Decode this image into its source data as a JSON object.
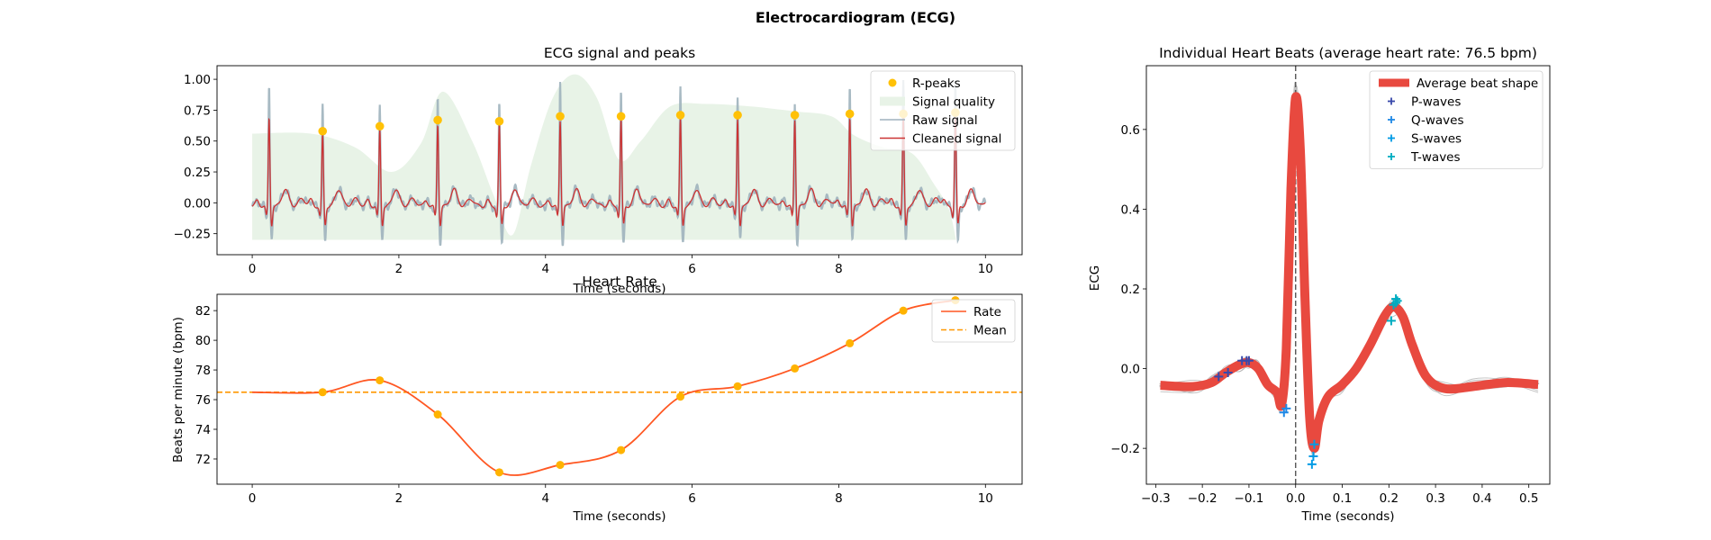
{
  "figure": {
    "title": "Electrocardiogram (ECG)"
  },
  "chart_data": [
    {
      "id": "ecg",
      "type": "line",
      "title": "ECG signal and peaks",
      "xlabel": "Time (seconds)",
      "ylabel": "",
      "xlim": [
        -0.48,
        10.5
      ],
      "ylim": [
        -0.42,
        1.11
      ],
      "xticks": [
        0,
        2,
        4,
        6,
        8,
        10
      ],
      "yticks": [
        -0.25,
        0.0,
        0.25,
        0.5,
        0.75,
        1.0
      ],
      "ytick_labels": [
        "−0.25",
        "0.00",
        "0.25",
        "0.50",
        "0.75",
        "1.00"
      ],
      "legend": {
        "placement": "top-right",
        "entries": [
          {
            "label": "R-peaks",
            "kind": "dot",
            "color": "#ffc107"
          },
          {
            "label": "Signal quality",
            "kind": "patch",
            "color": "#e8f3e7"
          },
          {
            "label": "Raw signal",
            "kind": "line",
            "color": "#9fb2bd"
          },
          {
            "label": "Cleaned signal",
            "kind": "line",
            "color": "#cc3333"
          }
        ]
      },
      "colors": {
        "raw": "#9fb2bd",
        "cleaned": "#cc3333",
        "quality": "#e8f3e7",
        "peaks": "#ffc107"
      },
      "r_peaks": {
        "x": [
          0.96,
          1.74,
          2.53,
          3.37,
          4.2,
          5.03,
          5.84,
          6.62,
          7.4,
          8.15,
          8.88,
          9.59
        ],
        "y": [
          0.58,
          0.62,
          0.67,
          0.66,
          0.7,
          0.7,
          0.71,
          0.71,
          0.71,
          0.72,
          0.72,
          0.73
        ]
      },
      "raw_peak_heights": [
        0.81,
        0.85,
        0.87,
        0.86,
        1.01,
        0.94,
        0.95,
        0.91,
        0.83,
        1.01,
        1.01,
        0.99
      ],
      "early_peak": {
        "x": 0.23,
        "y": 0.72,
        "raw_y": 1.01
      },
      "signal_quality": {
        "x": [
          0.0,
          0.8,
          1.4,
          1.9,
          2.3,
          2.6,
          3.0,
          3.3,
          3.55,
          3.8,
          4.1,
          4.4,
          4.7,
          5.0,
          5.3,
          5.7,
          6.2,
          6.8,
          7.4,
          7.9,
          8.2,
          8.6,
          9.0,
          9.3,
          9.5,
          9.6
        ],
        "y": [
          0.56,
          0.56,
          0.45,
          0.25,
          0.48,
          0.9,
          0.5,
          0.05,
          -0.26,
          0.3,
          0.85,
          1.04,
          0.85,
          0.35,
          0.5,
          0.78,
          0.8,
          0.78,
          0.74,
          0.7,
          0.55,
          0.45,
          0.4,
          0.15,
          -0.05,
          -0.3
        ]
      }
    },
    {
      "id": "rate",
      "type": "line",
      "title": "Heart Rate",
      "xlabel": "Time (seconds)",
      "ylabel": "Beats per minute (bpm)",
      "xlim": [
        -0.48,
        10.5
      ],
      "ylim": [
        70.3,
        83.1
      ],
      "xticks": [
        0,
        2,
        4,
        6,
        8,
        10
      ],
      "yticks": [
        72,
        74,
        76,
        78,
        80,
        82
      ],
      "legend": {
        "placement": "top-right",
        "entries": [
          {
            "label": "Rate",
            "kind": "line",
            "color": "#ff5722"
          },
          {
            "label": "Mean",
            "kind": "dashed",
            "color": "#ff9800"
          }
        ]
      },
      "colors": {
        "rate": "#ff5722",
        "mean": "#ff9800",
        "points": "#ffb300"
      },
      "mean": 76.5,
      "rate_points": {
        "x": [
          0.96,
          1.74,
          2.53,
          3.37,
          4.2,
          5.03,
          5.84,
          6.62,
          7.4,
          8.15,
          8.88,
          9.59
        ],
        "y": [
          76.5,
          77.3,
          75.0,
          71.1,
          71.6,
          72.6,
          76.2,
          76.9,
          78.1,
          79.8,
          82.0,
          82.7
        ]
      },
      "rate_curve_start": {
        "x": 0.0,
        "y": 76.5
      }
    },
    {
      "id": "beats",
      "type": "line",
      "title": "Individual Heart Beats (average heart rate: 76.5 bpm)",
      "xlabel": "Time (seconds)",
      "ylabel": "ECG",
      "xlim": [
        -0.32,
        0.545
      ],
      "ylim": [
        -0.29,
        0.76
      ],
      "xticks": [
        -0.3,
        -0.2,
        -0.1,
        0.0,
        0.1,
        0.2,
        0.3,
        0.4,
        0.5
      ],
      "xtick_labels": [
        "−0.3",
        "−0.2",
        "−0.1",
        "0.0",
        "0.1",
        "0.2",
        "0.3",
        "0.4",
        "0.5"
      ],
      "yticks": [
        -0.2,
        0.0,
        0.2,
        0.4,
        0.6
      ],
      "ytick_labels": [
        "−0.2",
        "0.0",
        "0.2",
        "0.4",
        "0.6"
      ],
      "legend": {
        "placement": "top-right",
        "entries": [
          {
            "label": "Average beat shape",
            "kind": "thick",
            "color": "#e8493f"
          },
          {
            "label": "P-waves",
            "kind": "plus",
            "color": "#3949ab"
          },
          {
            "label": "Q-waves",
            "kind": "plus",
            "color": "#1e88e5"
          },
          {
            "label": "S-waves",
            "kind": "plus",
            "color": "#039be5"
          },
          {
            "label": "T-waves",
            "kind": "plus",
            "color": "#00acc1"
          }
        ]
      },
      "colors": {
        "average": "#e8493f",
        "individual": "#b0b0b0",
        "vline": "#555555"
      },
      "average_beat": {
        "x": [
          -0.29,
          -0.22,
          -0.18,
          -0.15,
          -0.12,
          -0.1,
          -0.08,
          -0.06,
          -0.04,
          -0.03,
          -0.02,
          -0.01,
          0.0,
          0.01,
          0.02,
          0.03,
          0.04,
          0.05,
          0.07,
          0.1,
          0.13,
          0.16,
          0.19,
          0.21,
          0.23,
          0.25,
          0.28,
          0.32,
          0.38,
          0.45,
          0.52
        ],
        "y": [
          -0.042,
          -0.045,
          -0.035,
          -0.01,
          0.01,
          0.015,
          0.0,
          -0.04,
          -0.06,
          -0.09,
          0.05,
          0.45,
          0.68,
          0.55,
          0.18,
          -0.12,
          -0.2,
          -0.13,
          -0.07,
          -0.04,
          0.0,
          0.06,
          0.13,
          0.155,
          0.13,
          0.06,
          -0.02,
          -0.05,
          -0.045,
          -0.035,
          -0.04
        ]
      },
      "p_waves": {
        "x": [
          -0.165,
          -0.145,
          -0.115,
          -0.105,
          -0.1
        ],
        "y": [
          -0.02,
          -0.01,
          0.02,
          0.02,
          0.02
        ]
      },
      "q_waves": {
        "x": [
          -0.025,
          -0.02
        ],
        "y": [
          -0.11,
          -0.1
        ]
      },
      "s_waves": {
        "x": [
          0.035,
          0.038,
          0.04
        ],
        "y": [
          -0.24,
          -0.22,
          -0.19
        ]
      },
      "t_waves": {
        "x": [
          0.205,
          0.21,
          0.215,
          0.215,
          0.218
        ],
        "y": [
          0.12,
          0.16,
          0.165,
          0.175,
          0.17
        ]
      }
    }
  ]
}
